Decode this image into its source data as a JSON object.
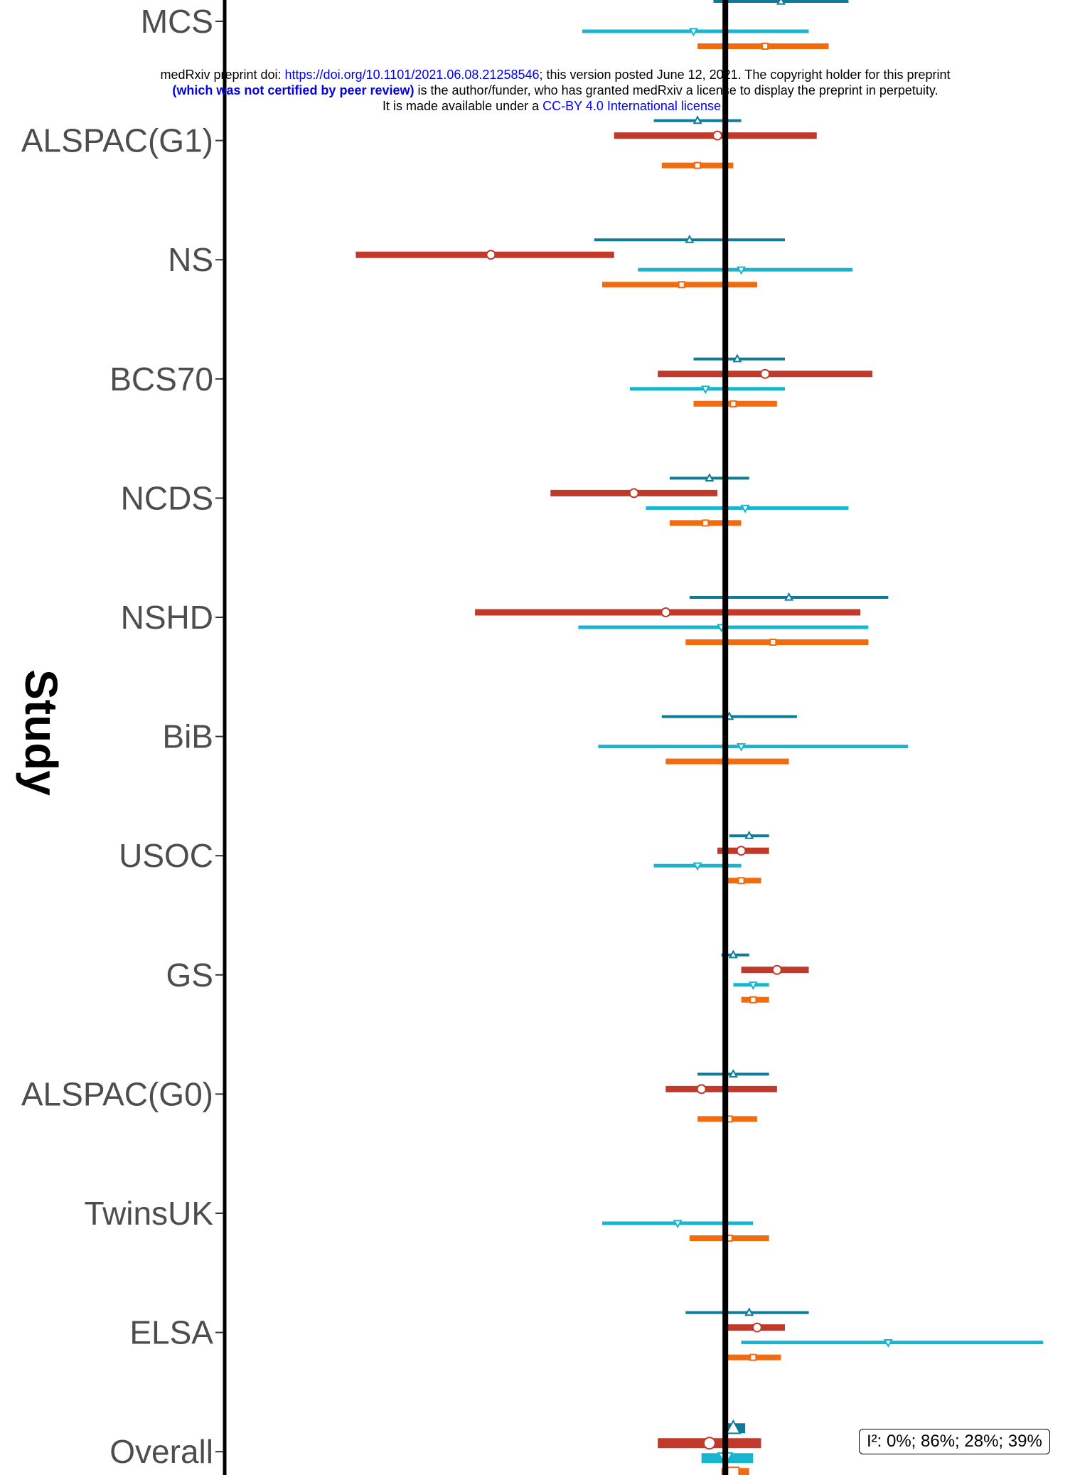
{
  "banner": {
    "line1_prefix": "medRxiv preprint doi: ",
    "line1_link": "https://doi.org/10.1101/2021.06.08.21258546",
    "line1_suffix": "; this version posted June 12, 2021. The copyright holder for this preprint",
    "line2_bold": "(which was not certified by peer review)",
    "line2_rest": " is the author/funder, who has granted medRxiv a license to display the preprint in perpetuity.",
    "line3_prefix": "It is made available under a ",
    "line3_link": "CC-BY 4.0 International license",
    "line3_suffix": " ."
  },
  "heterogeneity_label": "I²: 0%; 86%; 28%; 39%",
  "chart_data": {
    "type": "forest",
    "ylabel": "Study",
    "xlabel": "",
    "reference_line": 0,
    "xlim": [
      -1.26,
      0.88
    ],
    "studies": [
      "MCS",
      "ALSPAC(G1)",
      "NS",
      "BCS70",
      "NCDS",
      "NSHD",
      "BiB",
      "USOC",
      "GS",
      "ALSPAC(G0)",
      "TwinsUK",
      "ELSA",
      "Overall"
    ],
    "series_colors": [
      "#0e7c99",
      "#c0392b",
      "#17b5cf",
      "#f26b0f"
    ],
    "series_markers": [
      "triangle-up",
      "circle",
      "triangle-down",
      "square"
    ],
    "series": [
      {
        "estimates": [
          {
            "study": "MCS",
            "est": 0.14,
            "lo": -0.03,
            "hi": 0.31
          },
          {
            "study": "ALSPAC(G1)",
            "est": -0.07,
            "lo": -0.18,
            "hi": 0.04
          },
          {
            "study": "NS",
            "est": -0.09,
            "lo": -0.33,
            "hi": 0.15
          },
          {
            "study": "BCS70",
            "est": 0.03,
            "lo": -0.08,
            "hi": 0.15
          },
          {
            "study": "NCDS",
            "est": -0.04,
            "lo": -0.14,
            "hi": 0.06
          },
          {
            "study": "NSHD",
            "est": 0.16,
            "lo": -0.09,
            "hi": 0.41
          },
          {
            "study": "BiB",
            "est": 0.01,
            "lo": -0.16,
            "hi": 0.18
          },
          {
            "study": "USOC",
            "est": 0.06,
            "lo": 0.01,
            "hi": 0.11
          },
          {
            "study": "GS",
            "est": 0.02,
            "lo": -0.01,
            "hi": 0.06
          },
          {
            "study": "ALSPAC(G0)",
            "est": 0.02,
            "lo": -0.07,
            "hi": 0.11
          },
          {
            "study": "ELSA",
            "est": 0.06,
            "lo": -0.1,
            "hi": 0.21
          },
          {
            "study": "Overall",
            "est": 0.02,
            "lo": 0.0,
            "hi": 0.05
          }
        ]
      },
      {
        "estimates": [
          {
            "study": "ALSPAC(G1)",
            "est": -0.02,
            "lo": -0.28,
            "hi": 0.23
          },
          {
            "study": "NS",
            "est": -0.59,
            "lo": -0.93,
            "hi": -0.28
          },
          {
            "study": "BCS70",
            "est": 0.1,
            "lo": -0.17,
            "hi": 0.37
          },
          {
            "study": "NCDS",
            "est": -0.23,
            "lo": -0.44,
            "hi": -0.02
          },
          {
            "study": "NSHD",
            "est": -0.15,
            "lo": -0.63,
            "hi": 0.34
          },
          {
            "study": "USOC",
            "est": 0.04,
            "lo": -0.02,
            "hi": 0.11
          },
          {
            "study": "GS",
            "est": 0.13,
            "lo": 0.04,
            "hi": 0.21
          },
          {
            "study": "ALSPAC(G0)",
            "est": -0.06,
            "lo": -0.15,
            "hi": 0.13
          },
          {
            "study": "ELSA",
            "est": 0.08,
            "lo": 0.0,
            "hi": 0.15
          },
          {
            "study": "Overall",
            "est": -0.04,
            "lo": -0.17,
            "hi": 0.09
          }
        ]
      },
      {
        "estimates": [
          {
            "study": "MCS",
            "est": -0.08,
            "lo": -0.36,
            "hi": 0.21
          },
          {
            "study": "NS",
            "est": 0.04,
            "lo": -0.22,
            "hi": 0.32
          },
          {
            "study": "BCS70",
            "est": -0.05,
            "lo": -0.24,
            "hi": 0.15
          },
          {
            "study": "NCDS",
            "est": 0.05,
            "lo": -0.2,
            "hi": 0.31
          },
          {
            "study": "NSHD",
            "est": -0.01,
            "lo": -0.37,
            "hi": 0.36
          },
          {
            "study": "BiB",
            "est": 0.04,
            "lo": -0.32,
            "hi": 0.46
          },
          {
            "study": "USOC",
            "est": -0.07,
            "lo": -0.18,
            "hi": 0.04
          },
          {
            "study": "GS",
            "est": 0.07,
            "lo": 0.02,
            "hi": 0.11
          },
          {
            "study": "TwinsUK",
            "est": -0.12,
            "lo": -0.31,
            "hi": 0.07
          },
          {
            "study": "ELSA",
            "est": 0.41,
            "lo": 0.04,
            "hi": 0.8
          },
          {
            "study": "Overall",
            "est": 0.0,
            "lo": -0.06,
            "hi": 0.07
          }
        ]
      },
      {
        "estimates": [
          {
            "study": "MCS",
            "est": 0.1,
            "lo": -0.07,
            "hi": 0.26
          },
          {
            "study": "ALSPAC(G1)",
            "est": -0.07,
            "lo": -0.16,
            "hi": 0.02
          },
          {
            "study": "NS",
            "est": -0.11,
            "lo": -0.31,
            "hi": 0.08
          },
          {
            "study": "BCS70",
            "est": 0.02,
            "lo": -0.08,
            "hi": 0.13
          },
          {
            "study": "NCDS",
            "est": -0.05,
            "lo": -0.14,
            "hi": 0.04
          },
          {
            "study": "NSHD",
            "est": 0.12,
            "lo": -0.1,
            "hi": 0.36
          },
          {
            "study": "BiB",
            "est": 0.0,
            "lo": -0.15,
            "hi": 0.16
          },
          {
            "study": "USOC",
            "est": 0.04,
            "lo": 0.0,
            "hi": 0.09
          },
          {
            "study": "GS",
            "est": 0.07,
            "lo": 0.04,
            "hi": 0.11
          },
          {
            "study": "ALSPAC(G0)",
            "est": 0.01,
            "lo": -0.07,
            "hi": 0.08
          },
          {
            "study": "TwinsUK",
            "est": 0.01,
            "lo": -0.09,
            "hi": 0.11
          },
          {
            "study": "ELSA",
            "est": 0.07,
            "lo": 0.0,
            "hi": 0.14
          },
          {
            "study": "Overall",
            "est": 0.02,
            "lo": -0.01,
            "hi": 0.06
          }
        ]
      }
    ]
  }
}
